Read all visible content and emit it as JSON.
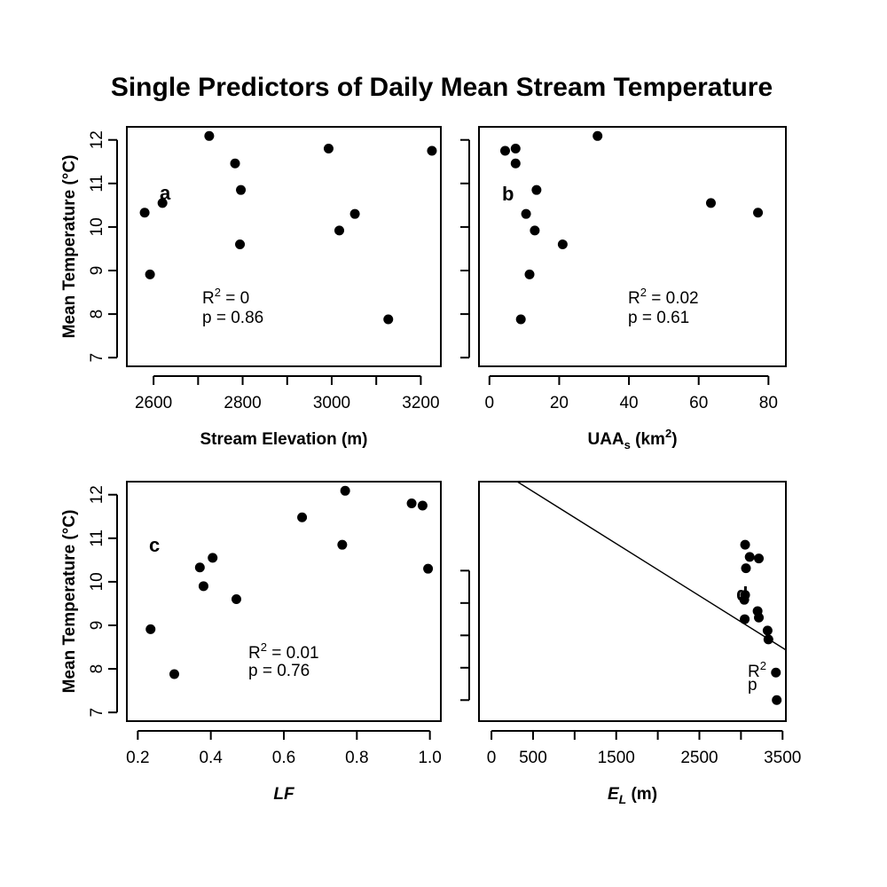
{
  "title": "Single Predictors of Daily Mean Stream Temperature",
  "chart_data": [
    {
      "type": "scatter",
      "panel": "a",
      "xlabel": "Stream Elevation (m)",
      "ylabel": "Mean Temperature (°C)",
      "xlim": [
        2540,
        3245
      ],
      "ylim": [
        6.8,
        12.3
      ],
      "xticks": [
        2600,
        2700,
        2800,
        2900,
        3000,
        3100,
        3200
      ],
      "xtick_labels": [
        "2600",
        "",
        "2800",
        "",
        "3000",
        "",
        "3200"
      ],
      "yticks": [
        7,
        8,
        9,
        10,
        11,
        12
      ],
      "ytick_labels": [
        "7",
        "8",
        "9",
        "10",
        "11",
        "12"
      ],
      "stats": {
        "r2_label": "R² = 0",
        "p_label": "p  = 0.86"
      },
      "points": [
        {
          "x": 2580,
          "y": 10.33
        },
        {
          "x": 2592,
          "y": 8.91
        },
        {
          "x": 2620,
          "y": 10.55
        },
        {
          "x": 2725,
          "y": 12.09
        },
        {
          "x": 2783,
          "y": 11.46
        },
        {
          "x": 2796,
          "y": 10.85
        },
        {
          "x": 2794,
          "y": 9.6
        },
        {
          "x": 2993,
          "y": 11.8
        },
        {
          "x": 3017,
          "y": 9.92
        },
        {
          "x": 3052,
          "y": 10.3
        },
        {
          "x": 3127,
          "y": 7.88
        },
        {
          "x": 3225,
          "y": 11.75
        }
      ]
    },
    {
      "type": "scatter",
      "panel": "b",
      "xlabel": "UAAs (km2)",
      "ylabel": "",
      "xlim": [
        -3,
        85
      ],
      "ylim": [
        6.8,
        12.3
      ],
      "xticks": [
        0,
        20,
        40,
        60,
        80
      ],
      "xtick_labels": [
        "0",
        "20",
        "40",
        "60",
        "80"
      ],
      "yticks": [
        7,
        8,
        9,
        10,
        11,
        12
      ],
      "ytick_labels": [
        "",
        "",
        "",
        "",
        "",
        ""
      ],
      "stats": {
        "r2_label": "R² = 0.02",
        "p_label": "p  = 0.61"
      },
      "points": [
        {
          "x": 4.5,
          "y": 11.75
        },
        {
          "x": 7.5,
          "y": 11.8
        },
        {
          "x": 7.5,
          "y": 11.46
        },
        {
          "x": 31,
          "y": 12.09
        },
        {
          "x": 13.5,
          "y": 10.85
        },
        {
          "x": 63.5,
          "y": 10.55
        },
        {
          "x": 77,
          "y": 10.33
        },
        {
          "x": 10.5,
          "y": 10.3
        },
        {
          "x": 13,
          "y": 9.92
        },
        {
          "x": 21,
          "y": 9.6
        },
        {
          "x": 11.5,
          "y": 8.91
        },
        {
          "x": 9,
          "y": 7.88
        }
      ]
    },
    {
      "type": "scatter",
      "panel": "c",
      "xlabel": "LF",
      "ylabel": "Mean Temperature (°C)",
      "xlim": [
        0.17,
        1.03
      ],
      "ylim": [
        6.8,
        12.3
      ],
      "xticks": [
        0.2,
        0.4,
        0.6,
        0.8,
        1.0
      ],
      "xtick_labels": [
        "0.2",
        "0.4",
        "0.6",
        "0.8",
        "1.0"
      ],
      "yticks": [
        7,
        8,
        9,
        10,
        11,
        12
      ],
      "ytick_labels": [
        "7",
        "8",
        "9",
        "10",
        "11",
        "12"
      ],
      "stats": {
        "r2_label": "R² = 0.01",
        "p_label": "p  = 0.76"
      },
      "points": [
        {
          "x": 0.235,
          "y": 8.91
        },
        {
          "x": 0.3,
          "y": 7.88
        },
        {
          "x": 0.37,
          "y": 10.33
        },
        {
          "x": 0.38,
          "y": 9.9
        },
        {
          "x": 0.405,
          "y": 10.55
        },
        {
          "x": 0.47,
          "y": 9.6
        },
        {
          "x": 0.65,
          "y": 11.48
        },
        {
          "x": 0.76,
          "y": 10.85
        },
        {
          "x": 0.768,
          "y": 12.09
        },
        {
          "x": 0.95,
          "y": 11.8
        },
        {
          "x": 0.98,
          "y": 11.75
        },
        {
          "x": 0.995,
          "y": 10.3
        }
      ]
    },
    {
      "type": "scatter",
      "panel": "d",
      "xlabel": "EL (m)",
      "ylabel": "",
      "xlim": [
        -150,
        3540
      ],
      "ylim": [
        -0.3,
        14.5
      ],
      "xticks": [
        0,
        500,
        1000,
        1500,
        2000,
        2500,
        3000,
        3500
      ],
      "xtick_labels": [
        "0",
        "500",
        "",
        "1500",
        "",
        "2500",
        "",
        "3500"
      ],
      "yticks": [
        1,
        3,
        5,
        7,
        9
      ],
      "ytick_labels": [
        "",
        "",
        "",
        "",
        ""
      ],
      "stats": {
        "r2_label": "R²",
        "p_label": "p"
      },
      "fit_line": {
        "x1": 310,
        "y1": 14.5,
        "x2": 3540,
        "y2": 4.1
      },
      "points": [
        {
          "x": 3050,
          "y": 10.6
        },
        {
          "x": 3105,
          "y": 9.85
        },
        {
          "x": 3215,
          "y": 9.75
        },
        {
          "x": 3060,
          "y": 9.15
        },
        {
          "x": 3050,
          "y": 7.5
        },
        {
          "x": 3040,
          "y": 7.2
        },
        {
          "x": 3200,
          "y": 6.5
        },
        {
          "x": 3215,
          "y": 6.1
        },
        {
          "x": 3045,
          "y": 6.0
        },
        {
          "x": 3320,
          "y": 5.3
        },
        {
          "x": 3330,
          "y": 4.75
        },
        {
          "x": 3420,
          "y": 2.7
        },
        {
          "x": 3430,
          "y": 1.0
        }
      ]
    }
  ]
}
